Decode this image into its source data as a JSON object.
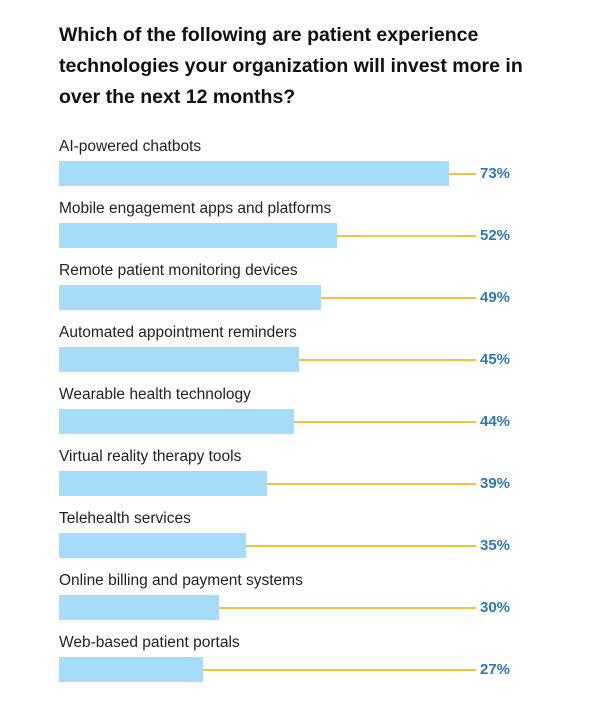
{
  "chart_data": {
    "type": "bar",
    "orientation": "horizontal",
    "title": "Which of the following are patient experience technologies your organization will invest more in over the next 12 months?",
    "categories": [
      "AI-powered chatbots",
      "Mobile engagement apps and platforms",
      "Remote patient monitoring devices",
      "Automated appointment reminders",
      "Wearable health technology",
      "Virtual reality therapy tools",
      "Telehealth services",
      "Online billing and payment systems",
      "Web-based patient portals"
    ],
    "values": [
      73,
      52,
      49,
      45,
      44,
      39,
      35,
      30,
      27
    ],
    "value_labels": [
      "73%",
      "52%",
      "49%",
      "45%",
      "44%",
      "39%",
      "35%",
      "30%",
      "27%"
    ],
    "unit": "%",
    "xlim": [
      0,
      100
    ],
    "grid": false,
    "colors": {
      "bar": "#a6ddfb",
      "connector": "#f4c243",
      "label": "#2f78b7"
    }
  }
}
